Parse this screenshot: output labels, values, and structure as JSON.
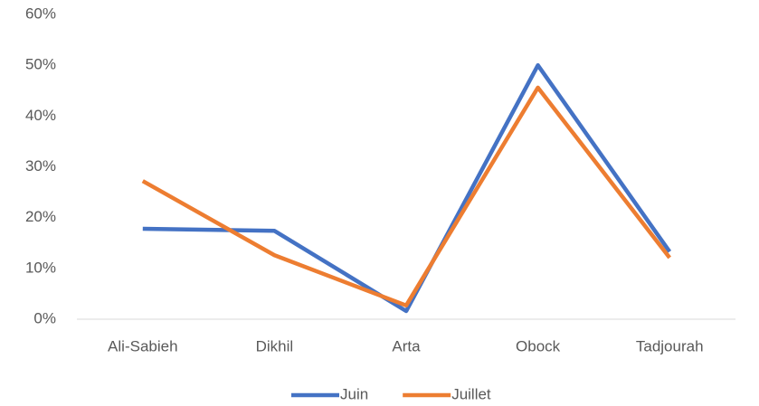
{
  "chart_data": {
    "type": "line",
    "categories": [
      "Ali-Sabieh",
      "Dikhil",
      "Arta",
      "Obock",
      "Tadjourah"
    ],
    "series": [
      {
        "name": "Juin",
        "color": "#4472c4",
        "values": [
          17.8,
          17.4,
          1.6,
          50.0,
          13.3
        ]
      },
      {
        "name": "Juillet",
        "color": "#ed7d31",
        "values": [
          27.2,
          12.6,
          2.7,
          45.6,
          12.1
        ]
      }
    ],
    "ylim": [
      0,
      60
    ],
    "yticks": [
      {
        "value": 0,
        "label": "0%"
      },
      {
        "value": 10,
        "label": "10%"
      },
      {
        "value": 20,
        "label": "20%"
      },
      {
        "value": 30,
        "label": "30%"
      },
      {
        "value": 40,
        "label": "40%"
      },
      {
        "value": 50,
        "label": "50%"
      },
      {
        "value": 60,
        "label": "60%"
      }
    ],
    "grid": false,
    "legend": "bottom"
  }
}
